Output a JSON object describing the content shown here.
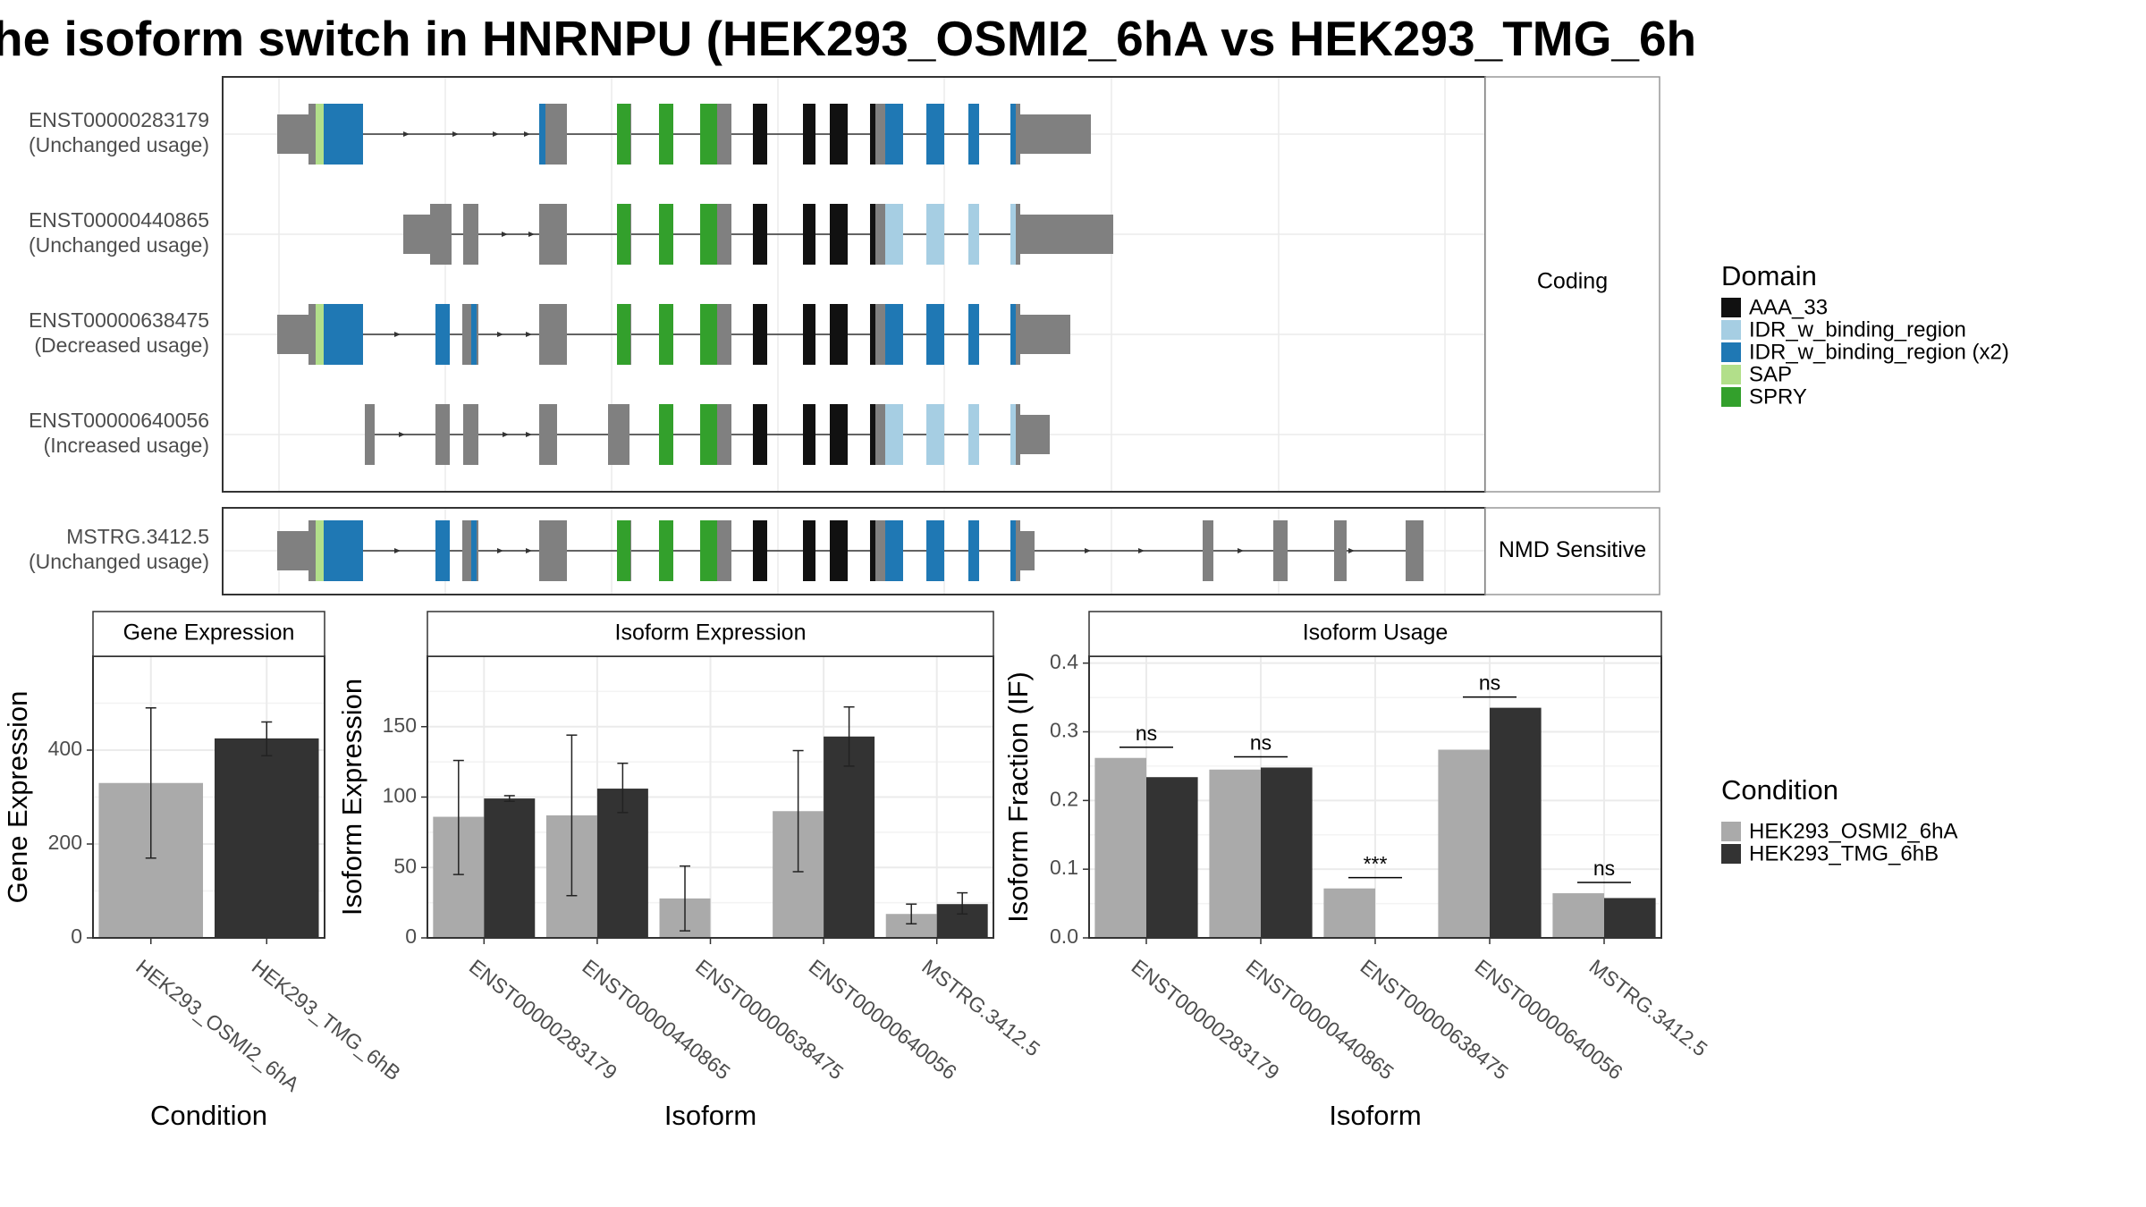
{
  "title": "he isoform switch in HNRNPU (HEK293_OSMI2_6hA vs HEK293_TMG_6h",
  "colors": {
    "AAA_33": "#111111",
    "IDR_w_binding_region": "#a6cee3",
    "IDR_w_binding_region (x2)": "#1f78b4",
    "SAP": "#b2df8a",
    "SPRY": "#33a02c",
    "none": "#808080",
    "cond1": "#aaaaaa",
    "cond2": "#333333"
  },
  "chart_data": [
    {
      "type": "transcript-structure",
      "facets": [
        "Coding",
        "NMD Sensitive"
      ],
      "transcripts": [
        {
          "id": "ENST00000283179",
          "usage": "(Unchanged usage)",
          "facet": "Coding"
        },
        {
          "id": "ENST00000440865",
          "usage": "(Unchanged usage)",
          "facet": "Coding"
        },
        {
          "id": "ENST00000638475",
          "usage": "(Decreased usage)",
          "facet": "Coding"
        },
        {
          "id": "ENST00000640056",
          "usage": "(Increased usage)",
          "facet": "Coding"
        },
        {
          "id": "MSTRG.3412.5",
          "usage": "(Unchanged usage)",
          "facet": "NMD Sensitive"
        }
      ],
      "legend_title": "Domain",
      "legend": [
        "AAA_33",
        "IDR_w_binding_region",
        "IDR_w_binding_region (x2)",
        "SAP",
        "SPRY"
      ]
    },
    {
      "type": "bar",
      "title": "Gene Expression",
      "xlabel": "Condition",
      "ylabel": "Gene Expression",
      "categories": [
        "HEK293_OSMI2_6hA",
        "HEK293_TMG_6hB"
      ],
      "values": [
        330,
        425
      ],
      "errors": [
        [
          170,
          490
        ],
        [
          388,
          460
        ]
      ],
      "ylim": [
        0,
        600
      ],
      "yticks": [
        0,
        200,
        400
      ]
    },
    {
      "type": "bar",
      "title": "Isoform Expression",
      "xlabel": "Isoform",
      "ylabel": "Isoform Expression",
      "categories": [
        "ENST00000283179",
        "ENST00000440865",
        "ENST00000638475",
        "ENST00000640056",
        "MSTRG.3412.5"
      ],
      "series": [
        {
          "name": "HEK293_OSMI2_6hA",
          "values": [
            86,
            87,
            28,
            90,
            17
          ],
          "errors": [
            [
              45,
              126
            ],
            [
              30,
              144
            ],
            [
              5,
              51
            ],
            [
              47,
              133
            ],
            [
              10,
              24
            ]
          ]
        },
        {
          "name": "HEK293_TMG_6hB",
          "values": [
            99,
            106,
            0,
            143,
            24
          ],
          "errors": [
            [
              97,
              101
            ],
            [
              89,
              124
            ],
            [
              0,
              0
            ],
            [
              122,
              164
            ],
            [
              17,
              32
            ]
          ]
        }
      ],
      "ylim": [
        0,
        200
      ],
      "yticks": [
        0,
        50,
        100,
        150
      ]
    },
    {
      "type": "bar",
      "title": "Isoform Usage",
      "xlabel": "Isoform",
      "ylabel": "Isoform Fraction (IF)",
      "categories": [
        "ENST00000283179",
        "ENST00000440865",
        "ENST00000638475",
        "ENST00000640056",
        "MSTRG.3412.5"
      ],
      "series": [
        {
          "name": "HEK293_OSMI2_6hA",
          "values": [
            0.262,
            0.245,
            0.072,
            0.274,
            0.065
          ]
        },
        {
          "name": "HEK293_TMG_6hB",
          "values": [
            0.234,
            0.248,
            0.0,
            0.335,
            0.058
          ]
        }
      ],
      "annotations": [
        "ns",
        "ns",
        "***",
        "ns",
        "ns"
      ],
      "ylim": [
        0,
        0.41
      ],
      "yticks": [
        "0.0",
        "0.1",
        "0.2",
        "0.3",
        "0.4"
      ]
    }
  ],
  "condition_legend": {
    "title": "Condition",
    "items": [
      "HEK293_OSMI2_6hA",
      "HEK293_TMG_6hB"
    ]
  }
}
